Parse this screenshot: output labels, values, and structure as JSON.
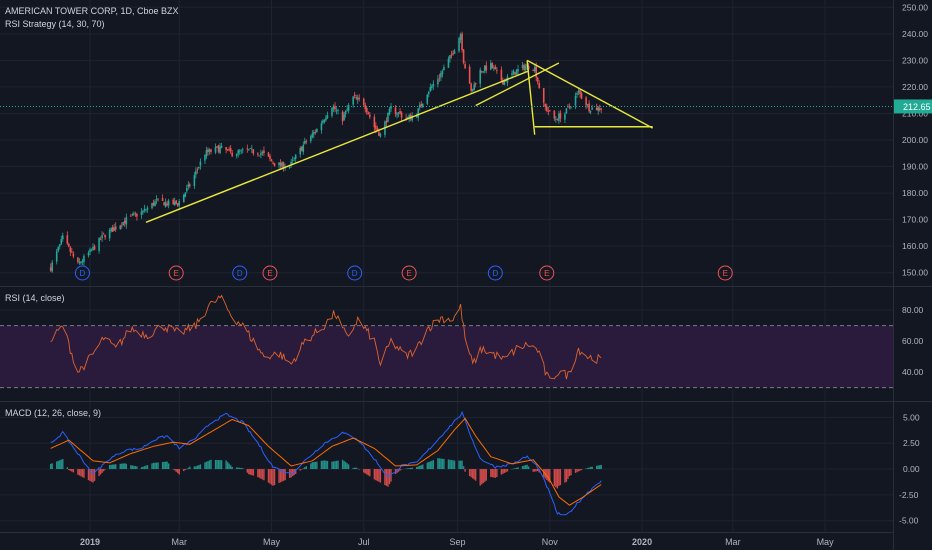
{
  "header": {
    "symbol_line": "AMERICAN TOWER CORP, 1D, Cboe BZX",
    "strategy_line": "RSI Strategy (14, 30, 70)"
  },
  "rsi_panel": {
    "title": "RSI (14, close)"
  },
  "macd_panel": {
    "title": "MACD (12, 26, close, 9)"
  },
  "colors": {
    "background": "#131722",
    "up_candle": "#26a69a",
    "down_candle": "#ef5350",
    "trendline": "#e8e83a",
    "rsi_line": "#e0632a",
    "rsi_band": "#2a1b3d",
    "macd_line": "#2962ff",
    "signal_line": "#ff6d00",
    "price_tag": "#22ab94",
    "dividend": "#2962ff",
    "earnings": "#ef5350"
  },
  "last_price": "212.65",
  "chart_data": [
    {
      "type": "candlestick",
      "y_ticks": [
        "250.00",
        "240.00",
        "230.00",
        "220.00",
        "210.00",
        "200.00",
        "190.00",
        "180.00",
        "170.00",
        "160.00",
        "150.00"
      ],
      "ylim": [
        145,
        252
      ],
      "x_ticks": [
        "2019",
        "Mar",
        "May",
        "Jul",
        "Sep",
        "Nov",
        "2020",
        "Mar",
        "May"
      ],
      "bold_x_ticks": [
        "2019",
        "2020"
      ],
      "anchors": [
        [
          "2018-12-06",
          152
        ],
        [
          "2018-12-14",
          163
        ],
        [
          "2018-12-24",
          153
        ],
        [
          "2019-01-03",
          159
        ],
        [
          "2019-01-10",
          164
        ],
        [
          "2019-01-18",
          167
        ],
        [
          "2019-01-25",
          170
        ],
        [
          "2019-02-05",
          173
        ],
        [
          "2019-02-14",
          177
        ],
        [
          "2019-02-22",
          176
        ],
        [
          "2019-02-28",
          176
        ],
        [
          "2019-03-08",
          183
        ],
        [
          "2019-03-18",
          195
        ],
        [
          "2019-03-28",
          197
        ],
        [
          "2019-04-05",
          195
        ],
        [
          "2019-04-15",
          196
        ],
        [
          "2019-04-25",
          195
        ],
        [
          "2019-05-03",
          191
        ],
        [
          "2019-05-13",
          190
        ],
        [
          "2019-05-22",
          198
        ],
        [
          "2019-05-31",
          204
        ],
        [
          "2019-06-10",
          213
        ],
        [
          "2019-06-17",
          208
        ],
        [
          "2019-06-24",
          216
        ],
        [
          "2019-07-01",
          214
        ],
        [
          "2019-07-08",
          205
        ],
        [
          "2019-07-12",
          202
        ],
        [
          "2019-07-19",
          212
        ],
        [
          "2019-07-29",
          208
        ],
        [
          "2019-08-05",
          210
        ],
        [
          "2019-08-12",
          218
        ],
        [
          "2019-08-20",
          224
        ],
        [
          "2019-08-28",
          232
        ],
        [
          "2019-09-03",
          240
        ],
        [
          "2019-09-05",
          230
        ],
        [
          "2019-09-10",
          218
        ],
        [
          "2019-09-16",
          226
        ],
        [
          "2019-09-23",
          228
        ],
        [
          "2019-10-01",
          222
        ],
        [
          "2019-10-10",
          226
        ],
        [
          "2019-10-17",
          228
        ],
        [
          "2019-10-22",
          227
        ],
        [
          "2019-10-28",
          213
        ],
        [
          "2019-11-04",
          208
        ],
        [
          "2019-11-11",
          210
        ],
        [
          "2019-11-20",
          218
        ],
        [
          "2019-11-27",
          212
        ],
        [
          "2019-12-05",
          212
        ]
      ],
      "trendlines": [
        {
          "from": [
            "2019-02-07",
            169
          ],
          "to": [
            "2019-10-18",
            226
          ]
        },
        {
          "from": [
            "2019-09-13",
            213
          ],
          "to": [
            "2019-11-07",
            229
          ]
        },
        {
          "from": [
            "2019-10-17",
            230
          ],
          "to": [
            "2020-01-08",
            204.5
          ]
        },
        {
          "from": [
            "2019-10-22",
            205
          ],
          "to": [
            "2020-01-08",
            205
          ]
        },
        {
          "from": [
            "2019-10-17",
            230
          ],
          "to": [
            "2019-10-22",
            202
          ]
        }
      ],
      "events": [
        {
          "kind": "D",
          "date": "2018-12-27"
        },
        {
          "kind": "E",
          "date": "2019-02-27"
        },
        {
          "kind": "D",
          "date": "2019-04-10"
        },
        {
          "kind": "E",
          "date": "2019-04-30"
        },
        {
          "kind": "D",
          "date": "2019-06-25"
        },
        {
          "kind": "E",
          "date": "2019-07-31"
        },
        {
          "kind": "D",
          "date": "2019-09-26"
        },
        {
          "kind": "E",
          "date": "2019-10-30"
        },
        {
          "kind": "E",
          "date": "2020-02-25"
        }
      ]
    },
    {
      "type": "line",
      "name": "RSI (14, close)",
      "y_ticks": [
        "80.00",
        "60.00",
        "40.00"
      ],
      "ylim": [
        22,
        93
      ],
      "bands": [
        30,
        70
      ],
      "anchors": [
        [
          "2018-12-06",
          60
        ],
        [
          "2018-12-14",
          70
        ],
        [
          "2018-12-24",
          40
        ],
        [
          "2019-01-02",
          50
        ],
        [
          "2019-01-10",
          62
        ],
        [
          "2019-01-18",
          55
        ],
        [
          "2019-01-28",
          68
        ],
        [
          "2019-02-08",
          64
        ],
        [
          "2019-02-18",
          70
        ],
        [
          "2019-03-01",
          65
        ],
        [
          "2019-03-12",
          70
        ],
        [
          "2019-03-20",
          82
        ],
        [
          "2019-03-28",
          88
        ],
        [
          "2019-04-05",
          76
        ],
        [
          "2019-04-12",
          70
        ],
        [
          "2019-04-19",
          60
        ],
        [
          "2019-04-26",
          50
        ],
        [
          "2019-05-06",
          52
        ],
        [
          "2019-05-14",
          45
        ],
        [
          "2019-05-23",
          60
        ],
        [
          "2019-06-03",
          68
        ],
        [
          "2019-06-12",
          78
        ],
        [
          "2019-06-20",
          62
        ],
        [
          "2019-06-27",
          74
        ],
        [
          "2019-07-08",
          60
        ],
        [
          "2019-07-12",
          45
        ],
        [
          "2019-07-19",
          60
        ],
        [
          "2019-07-29",
          50
        ],
        [
          "2019-08-05",
          55
        ],
        [
          "2019-08-12",
          68
        ],
        [
          "2019-08-21",
          75
        ],
        [
          "2019-08-29",
          74
        ],
        [
          "2019-09-03",
          82
        ],
        [
          "2019-09-06",
          62
        ],
        [
          "2019-09-11",
          45
        ],
        [
          "2019-09-17",
          55
        ],
        [
          "2019-09-24",
          52
        ],
        [
          "2019-10-02",
          48
        ],
        [
          "2019-10-10",
          55
        ],
        [
          "2019-10-18",
          58
        ],
        [
          "2019-10-24",
          54
        ],
        [
          "2019-10-29",
          40
        ],
        [
          "2019-11-01",
          34
        ],
        [
          "2019-11-06",
          40
        ],
        [
          "2019-11-13",
          38
        ],
        [
          "2019-11-20",
          55
        ],
        [
          "2019-11-26",
          50
        ],
        [
          "2019-12-05",
          48
        ]
      ]
    },
    {
      "type": "line",
      "name": "MACD (12, 26, close, 9)",
      "y_ticks": [
        "5.00",
        "2.50",
        "0.00",
        "-2.50",
        "-5.00"
      ],
      "ylim": [
        -5.9,
        6.2
      ],
      "macd_anchors": [
        [
          "2018-12-06",
          2.5
        ],
        [
          "2018-12-14",
          3.5
        ],
        [
          "2018-12-24",
          1.5
        ],
        [
          "2019-01-03",
          -0.5
        ],
        [
          "2019-01-14",
          1
        ],
        [
          "2019-01-24",
          1.8
        ],
        [
          "2019-02-04",
          2
        ],
        [
          "2019-02-12",
          2.8
        ],
        [
          "2019-02-21",
          3.2
        ],
        [
          "2019-03-01",
          2
        ],
        [
          "2019-03-12",
          3
        ],
        [
          "2019-03-22",
          4.5
        ],
        [
          "2019-04-01",
          5.3
        ],
        [
          "2019-04-12",
          4.5
        ],
        [
          "2019-04-22",
          2.5
        ],
        [
          "2019-05-02",
          0.2
        ],
        [
          "2019-05-14",
          -0.5
        ],
        [
          "2019-05-23",
          0.8
        ],
        [
          "2019-06-05",
          2.5
        ],
        [
          "2019-06-17",
          3.5
        ],
        [
          "2019-06-26",
          3
        ],
        [
          "2019-07-08",
          1
        ],
        [
          "2019-07-17",
          -0.8
        ],
        [
          "2019-07-26",
          0.3
        ],
        [
          "2019-08-05",
          0.6
        ],
        [
          "2019-08-15",
          2.2
        ],
        [
          "2019-08-26",
          4
        ],
        [
          "2019-09-04",
          5.4
        ],
        [
          "2019-09-09",
          3.5
        ],
        [
          "2019-09-16",
          1
        ],
        [
          "2019-09-26",
          0.2
        ],
        [
          "2019-10-07",
          0.5
        ],
        [
          "2019-10-17",
          1.2
        ],
        [
          "2019-10-24",
          0.2
        ],
        [
          "2019-10-31",
          -2
        ],
        [
          "2019-11-06",
          -4.3
        ],
        [
          "2019-11-12",
          -4.5
        ],
        [
          "2019-11-20",
          -3.2
        ],
        [
          "2019-11-28",
          -2
        ],
        [
          "2019-12-05",
          -1.1
        ]
      ],
      "signal_anchors": [
        [
          "2018-12-06",
          2
        ],
        [
          "2018-12-18",
          2.8
        ],
        [
          "2019-01-03",
          0.8
        ],
        [
          "2019-01-14",
          0.6
        ],
        [
          "2019-01-28",
          1.5
        ],
        [
          "2019-02-12",
          2.2
        ],
        [
          "2019-02-25",
          2.6
        ],
        [
          "2019-03-08",
          2.4
        ],
        [
          "2019-03-22",
          3.6
        ],
        [
          "2019-04-05",
          4.8
        ],
        [
          "2019-04-16",
          4.2
        ],
        [
          "2019-04-29",
          2.2
        ],
        [
          "2019-05-14",
          0.3
        ],
        [
          "2019-05-28",
          0.8
        ],
        [
          "2019-06-10",
          2.2
        ],
        [
          "2019-06-24",
          3
        ],
        [
          "2019-07-08",
          2
        ],
        [
          "2019-07-22",
          0.3
        ],
        [
          "2019-08-05",
          0.4
        ],
        [
          "2019-08-19",
          1.8
        ],
        [
          "2019-08-30",
          3.8
        ],
        [
          "2019-09-06",
          4.9
        ],
        [
          "2019-09-13",
          3.2
        ],
        [
          "2019-09-23",
          1.2
        ],
        [
          "2019-10-07",
          0.5
        ],
        [
          "2019-10-21",
          0.9
        ],
        [
          "2019-10-31",
          -0.8
        ],
        [
          "2019-11-07",
          -2.7
        ],
        [
          "2019-11-14",
          -3.5
        ],
        [
          "2019-11-22",
          -2.8
        ],
        [
          "2019-12-05",
          -1.5
        ]
      ]
    }
  ]
}
